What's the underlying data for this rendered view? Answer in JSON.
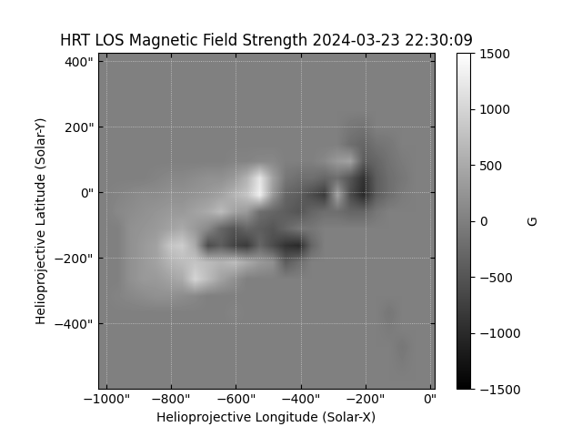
{
  "chart_data": {
    "type": "heatmap",
    "title": "HRT LOS Magnetic Field Strength 2024-03-23 22:30:09",
    "x_label": "Helioprojective Longitude (Solar-X)",
    "y_label": "Helioprojective Latitude (Solar-Y)",
    "xlim": [
      -1025,
      14
    ],
    "ylim": [
      -600,
      425
    ],
    "xticks": [
      {
        "value": -1000,
        "label": "−1000\""
      },
      {
        "value": -800,
        "label": "−800\""
      },
      {
        "value": -600,
        "label": "−600\""
      },
      {
        "value": -400,
        "label": "−400\""
      },
      {
        "value": -200,
        "label": "−200\""
      },
      {
        "value": 0,
        "label": "0\""
      }
    ],
    "yticks": [
      {
        "value": -400,
        "label": "−400\""
      },
      {
        "value": -200,
        "label": "−200\""
      },
      {
        "value": 0,
        "label": "0\""
      },
      {
        "value": 200,
        "label": "200\""
      },
      {
        "value": 400,
        "label": "400\""
      }
    ],
    "grid": true,
    "color": "gray",
    "colorbar_label": "G",
    "colorbar_range": [
      -1500,
      1500
    ],
    "colorbar_ticks": [
      {
        "value": -1500,
        "label": "−1500"
      },
      {
        "value": -1000,
        "label": "−1000"
      },
      {
        "value": -500,
        "label": "−500"
      },
      0,
      500,
      1000,
      1500
    ],
    "cells": [
      [
        0,
        0,
        0,
        0,
        0,
        0,
        0,
        0,
        0,
        0,
        0,
        0,
        0,
        0,
        0,
        0,
        0,
        0,
        0,
        0,
        0,
        0,
        0,
        0,
        0,
        0
      ],
      [
        0,
        0,
        0,
        0,
        0,
        0,
        0,
        0,
        0,
        0,
        0,
        0,
        0,
        0,
        0,
        0,
        0,
        0,
        0,
        0,
        0,
        0,
        0,
        0,
        0,
        0
      ],
      [
        0,
        0,
        0,
        0,
        0,
        0,
        0,
        0,
        0,
        0,
        0,
        0,
        0,
        0,
        0,
        0,
        0,
        0,
        0,
        0,
        0,
        0,
        0,
        0,
        0,
        0
      ],
      [
        0,
        0,
        0,
        0,
        0,
        0,
        0,
        0,
        0,
        0,
        0,
        0,
        0,
        0,
        0,
        0,
        0,
        0,
        0,
        0,
        0,
        0,
        0,
        0,
        0,
        0
      ],
      [
        0,
        0,
        0,
        0,
        0,
        0,
        0,
        0,
        0,
        0,
        0,
        0,
        0,
        0,
        0,
        0,
        0,
        0,
        0,
        -100,
        -150,
        0,
        0,
        0,
        0,
        0
      ],
      [
        0,
        0,
        0,
        0,
        0,
        0,
        0,
        0,
        0,
        0,
        0,
        0,
        0,
        0,
        0,
        0,
        0,
        0,
        0,
        -200,
        -300,
        -150,
        -100,
        0,
        0,
        0
      ],
      [
        0,
        0,
        0,
        0,
        0,
        0,
        0,
        0,
        0,
        0,
        50,
        50,
        100,
        100,
        0,
        0,
        0,
        100,
        300,
        400,
        -400,
        -300,
        -150,
        -50,
        0,
        0
      ],
      [
        0,
        0,
        0,
        0,
        50,
        100,
        100,
        150,
        200,
        200,
        300,
        600,
        1200,
        400,
        -100,
        -200,
        -200,
        -300,
        -200,
        -500,
        -900,
        -400,
        -200,
        -100,
        0,
        0
      ],
      [
        0,
        50,
        100,
        150,
        150,
        200,
        200,
        250,
        300,
        400,
        600,
        800,
        1300,
        300,
        -300,
        -400,
        -600,
        -800,
        400,
        -600,
        -1000,
        -400,
        -200,
        -50,
        0,
        0
      ],
      [
        0,
        100,
        150,
        200,
        250,
        300,
        300,
        400,
        500,
        700,
        400,
        300,
        -200,
        -300,
        -400,
        -500,
        -300,
        -200,
        -200,
        -300,
        -300,
        -100,
        0,
        0,
        0,
        0
      ],
      [
        0,
        0,
        200,
        250,
        300,
        400,
        500,
        300,
        100,
        -300,
        -500,
        -300,
        -400,
        -500,
        -300,
        -100,
        -100,
        0,
        0,
        0,
        0,
        0,
        0,
        0,
        0,
        0
      ],
      [
        0,
        0,
        200,
        300,
        400,
        800,
        900,
        500,
        -600,
        -400,
        -700,
        -800,
        -300,
        -600,
        -900,
        -1000,
        -300,
        0,
        0,
        0,
        0,
        0,
        0,
        0,
        0,
        0
      ],
      [
        0,
        0,
        200,
        300,
        400,
        600,
        700,
        800,
        700,
        600,
        700,
        500,
        300,
        200,
        -400,
        -200,
        0,
        0,
        0,
        0,
        0,
        0,
        0,
        0,
        0,
        0
      ],
      [
        0,
        0,
        200,
        300,
        300,
        400,
        500,
        1000,
        700,
        400,
        200,
        0,
        0,
        0,
        0,
        0,
        0,
        0,
        0,
        0,
        0,
        0,
        0,
        0,
        0,
        0
      ],
      [
        0,
        50,
        100,
        150,
        200,
        200,
        150,
        100,
        0,
        0,
        0,
        0,
        0,
        0,
        0,
        0,
        0,
        0,
        0,
        0,
        0,
        0,
        0,
        0,
        0,
        0
      ],
      [
        0,
        0,
        0,
        0,
        0,
        0,
        0,
        0,
        0,
        0,
        50,
        0,
        0,
        0,
        0,
        0,
        0,
        0,
        0,
        0,
        0,
        0,
        -100,
        0,
        0,
        0
      ],
      [
        0,
        0,
        0,
        0,
        0,
        0,
        0,
        0,
        0,
        0,
        0,
        0,
        0,
        0,
        0,
        0,
        0,
        0,
        0,
        0,
        0,
        0,
        -50,
        0,
        0,
        0
      ],
      [
        0,
        0,
        0,
        0,
        0,
        0,
        0,
        0,
        0,
        0,
        0,
        0,
        0,
        0,
        0,
        0,
        0,
        0,
        0,
        0,
        0,
        0,
        0,
        -100,
        0,
        0
      ],
      [
        0,
        0,
        0,
        0,
        0,
        0,
        0,
        0,
        0,
        0,
        0,
        0,
        0,
        0,
        0,
        0,
        0,
        0,
        0,
        0,
        0,
        0,
        0,
        -50,
        0,
        0
      ],
      [
        0,
        0,
        0,
        0,
        0,
        0,
        0,
        0,
        0,
        0,
        0,
        0,
        0,
        0,
        0,
        0,
        0,
        0,
        0,
        0,
        0,
        0,
        0,
        0,
        0,
        0
      ]
    ]
  }
}
